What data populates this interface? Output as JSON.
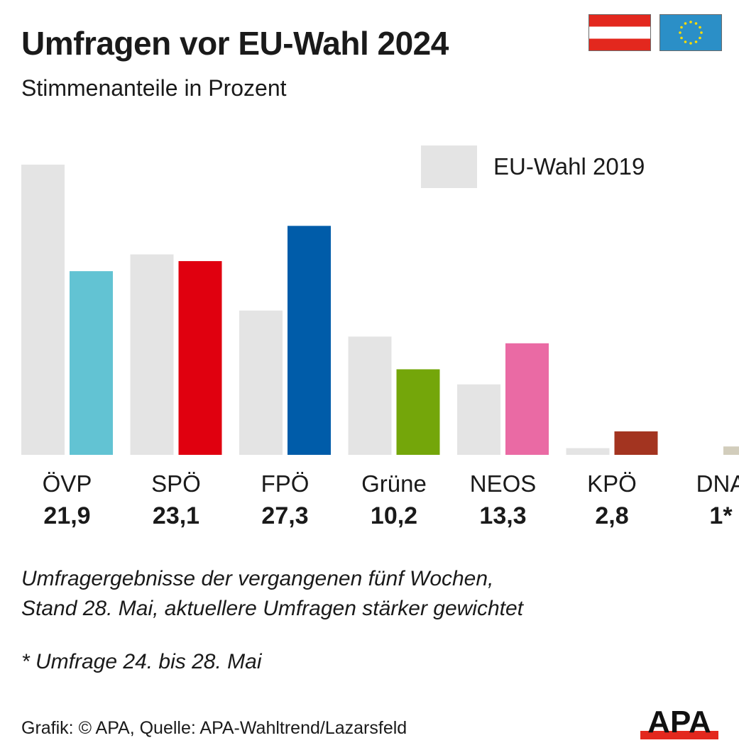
{
  "title": "Umfragen vor EU-Wahl 2024",
  "subtitle": "Stimmenanteile in Prozent",
  "legend": {
    "label": "EU-Wahl 2019",
    "color": "#e4e4e4"
  },
  "notes": {
    "line1": "Umfragergebnisse der vergangenen fünf Wochen,",
    "line2": "Stand 28. Mai, aktuellere Umfragen stärker gewichtet",
    "footnote": "* Umfrage 24. bis 28. Mai"
  },
  "source": "Grafik: © APA, Quelle: APA-Wahltrend/Lazarsfeld",
  "logo_text": "APA",
  "icons": {
    "flag_austria": "austria-flag-icon",
    "flag_eu": "eu-flag-icon"
  },
  "chart_data": {
    "type": "bar",
    "categories": [
      "ÖVP",
      "SPÖ",
      "FPÖ",
      "Grüne",
      "NEOS",
      "KPÖ",
      "DNA"
    ],
    "series": [
      {
        "name": "EU-Wahl 2019",
        "values": [
          34.6,
          23.9,
          17.2,
          14.1,
          8.4,
          0.8,
          0
        ],
        "color": "#e4e4e4"
      },
      {
        "values": [
          21.9,
          23.1,
          27.3,
          10.2,
          13.3,
          2.8,
          1
        ],
        "colors": [
          "#62c3d3",
          "#e0000f",
          "#005ca9",
          "#74a60a",
          "#ea6aa4",
          "#a33420",
          "#d2cdbc"
        ]
      }
    ],
    "value_labels": [
      "21,9",
      "23,1",
      "27,3",
      "10,2",
      "13,3",
      "2,8",
      "1*"
    ],
    "ylim": [
      0,
      35
    ],
    "grid": false,
    "legend_position": "top-right"
  }
}
